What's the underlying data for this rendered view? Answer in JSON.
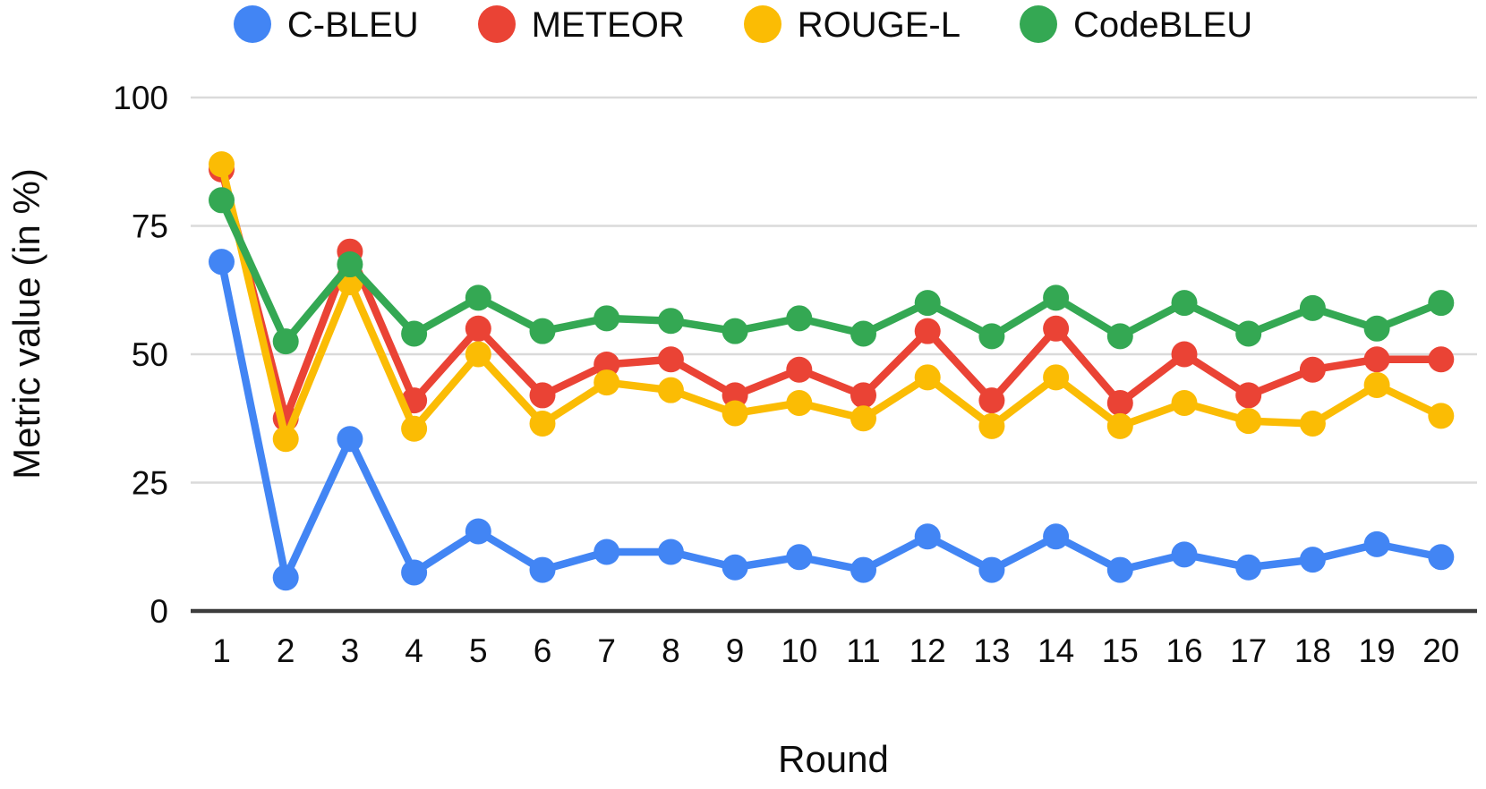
{
  "figure": {
    "background": "#ffffff"
  },
  "legend": {
    "position": "top"
  },
  "chart_data": {
    "type": "line",
    "title": "",
    "xlabel": "Round",
    "ylabel": "Metric value (in %)",
    "x": [
      1,
      2,
      3,
      4,
      5,
      6,
      7,
      8,
      9,
      10,
      11,
      12,
      13,
      14,
      15,
      16,
      17,
      18,
      19,
      20
    ],
    "y_ticks": [
      0,
      25,
      50,
      75,
      100
    ],
    "ylim": [
      0,
      100
    ],
    "grid": "horizontal",
    "legend_position": "top",
    "marker": "circle",
    "axis_color": "#3c3c3c",
    "grid_color": "#dadada",
    "series": [
      {
        "name": "C-BLEU",
        "color": "#4285F4",
        "values": [
          68,
          6.5,
          33.5,
          7.5,
          15.5,
          8,
          11.5,
          11.5,
          8.5,
          10.5,
          8,
          14.5,
          8,
          14.5,
          8,
          11,
          8.5,
          10,
          13,
          10.5
        ]
      },
      {
        "name": "METEOR",
        "color": "#EA4335",
        "values": [
          86,
          37.5,
          70,
          41,
          55,
          42,
          48,
          49,
          42,
          47,
          42,
          54.5,
          41,
          55,
          40.5,
          50,
          42,
          47,
          49,
          49
        ]
      },
      {
        "name": "ROUGE-L",
        "color": "#FBBC04",
        "values": [
          87,
          33.5,
          64,
          35.5,
          50,
          36.5,
          44.5,
          43,
          38.5,
          40.5,
          37.5,
          45.5,
          36,
          45.5,
          36,
          40.5,
          37,
          36.5,
          44,
          38
        ]
      },
      {
        "name": "CodeBLEU",
        "color": "#34A853",
        "values": [
          80,
          52.5,
          67.5,
          54,
          61,
          54.5,
          57,
          56.5,
          54.5,
          57,
          54,
          60,
          53.5,
          61,
          53.5,
          60,
          54,
          59,
          55,
          60
        ]
      }
    ]
  }
}
